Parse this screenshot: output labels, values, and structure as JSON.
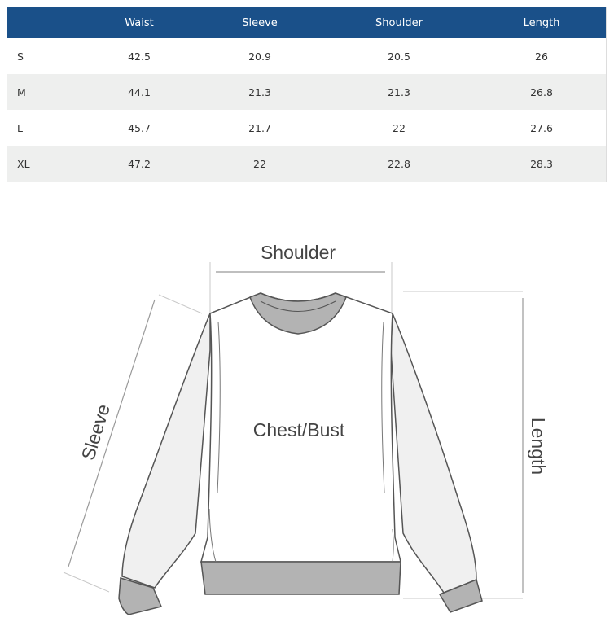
{
  "table": {
    "headers": [
      "",
      "Waist",
      "Sleeve",
      "Shoulder",
      "Length"
    ],
    "rows": [
      [
        "S",
        "42.5",
        "20.9",
        "20.5",
        "26"
      ],
      [
        "M",
        "44.1",
        "21.3",
        "21.3",
        "26.8"
      ],
      [
        "L",
        "45.7",
        "21.7",
        "22",
        "27.6"
      ],
      [
        "XL",
        "47.2",
        "22",
        "22.8",
        "28.3"
      ]
    ]
  },
  "diagram": {
    "shoulder": "Shoulder",
    "chest": "Chest/Bust",
    "sleeve": "Sleeve",
    "length": "Length"
  },
  "colors": {
    "header_bg": "#1a5089",
    "rib": "#b3b3b3",
    "sleeve_fill": "#f0f0f0"
  }
}
